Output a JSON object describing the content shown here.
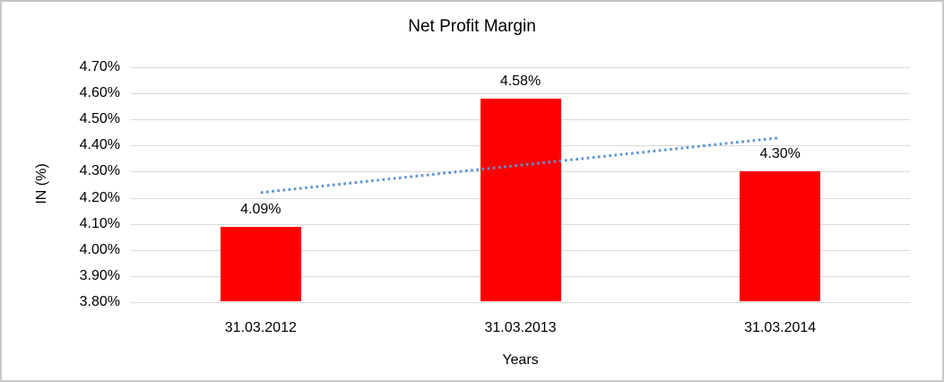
{
  "chart_data": {
    "type": "bar",
    "title": "Net Profit Margin",
    "xlabel": "Years",
    "ylabel": "IN (%)",
    "categories": [
      "31.03.2012",
      "31.03.2013",
      "31.03.2014"
    ],
    "values": [
      4.09,
      4.58,
      4.3
    ],
    "data_labels": [
      "4.09%",
      "4.58%",
      "4.30%"
    ],
    "ylim": [
      3.8,
      4.7
    ],
    "ytick_step": 0.1,
    "ytick_labels": [
      "3.80%",
      "3.90%",
      "4.00%",
      "4.10%",
      "4.20%",
      "4.30%",
      "4.40%",
      "4.50%",
      "4.60%",
      "4.70%"
    ],
    "grid": true,
    "legend": "none",
    "bar_color": "#ff0000",
    "gridline_color": "#d9d9d9",
    "trendline": {
      "type": "linear",
      "style": "dotted",
      "color": "#5b94d1",
      "start_value": 4.22,
      "end_value": 4.43
    }
  }
}
